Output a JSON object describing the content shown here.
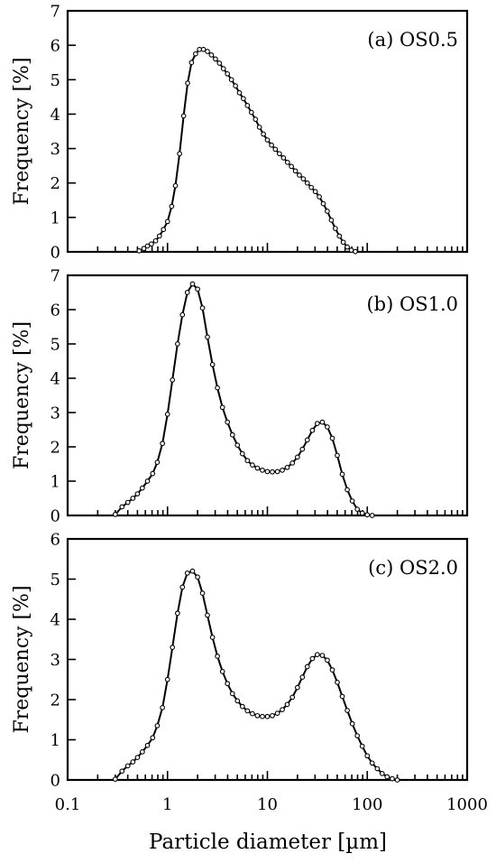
{
  "chart_data": {
    "type": "line",
    "xlabel": "Particle diameter [µm]",
    "xscale": "log",
    "xlim": [
      0.1,
      1000
    ],
    "x_tick_labels": [
      "0.1",
      "1",
      "10",
      "100",
      "1000"
    ],
    "x_tick_values": [
      0.1,
      1,
      10,
      100,
      1000
    ],
    "grid": false,
    "marker": "open-circle",
    "panels": [
      {
        "label": "(a) OS0.5",
        "ylabel": "Frequency [%]",
        "ylim": [
          0,
          7
        ],
        "y_ticks": [
          0,
          1,
          2,
          3,
          4,
          5,
          6,
          7
        ],
        "series": [
          {
            "x": [
              0.52,
              0.58,
              0.63,
              0.69,
              0.76,
              0.83,
              0.91,
              1.0,
              1.1,
              1.2,
              1.32,
              1.45,
              1.59,
              1.74,
              1.91,
              2.09,
              2.29,
              2.51,
              2.75,
              3.02,
              3.31,
              3.63,
              3.98,
              4.37,
              4.79,
              5.25,
              5.75,
              6.31,
              6.92,
              7.59,
              8.32,
              9.12,
              10.0,
              11.0,
              12.0,
              13.2,
              14.5,
              15.9,
              17.4,
              19.1,
              20.9,
              22.9,
              25.1,
              27.5,
              30.2,
              33.1,
              36.3,
              39.8,
              43.7,
              47.9,
              52.5,
              57.5,
              63.1,
              69.2,
              75.9
            ],
            "y": [
              0.03,
              0.1,
              0.17,
              0.23,
              0.32,
              0.46,
              0.65,
              0.88,
              1.32,
              1.92,
              2.85,
              3.95,
              4.9,
              5.5,
              5.75,
              5.88,
              5.88,
              5.82,
              5.72,
              5.6,
              5.48,
              5.32,
              5.17,
              5.0,
              4.82,
              4.62,
              4.45,
              4.25,
              4.05,
              3.85,
              3.62,
              3.42,
              3.25,
              3.1,
              2.98,
              2.85,
              2.73,
              2.6,
              2.48,
              2.35,
              2.23,
              2.12,
              2.0,
              1.87,
              1.75,
              1.6,
              1.4,
              1.18,
              0.92,
              0.68,
              0.46,
              0.28,
              0.14,
              0.05,
              0.01
            ]
          }
        ]
      },
      {
        "label": "(b) OS1.0",
        "ylabel": "Frequency [%]",
        "ylim": [
          0,
          7
        ],
        "y_ticks": [
          0,
          1,
          2,
          3,
          4,
          5,
          6,
          7
        ],
        "series": [
          {
            "x": [
              0.3,
              0.35,
              0.4,
              0.45,
              0.5,
              0.56,
              0.63,
              0.71,
              0.79,
              0.89,
              1.0,
              1.12,
              1.26,
              1.41,
              1.58,
              1.78,
              2.0,
              2.24,
              2.51,
              2.82,
              3.16,
              3.55,
              3.98,
              4.47,
              5.01,
              5.62,
              6.31,
              7.08,
              7.94,
              8.91,
              10.0,
              11.2,
              12.6,
              14.1,
              15.8,
              17.8,
              20.0,
              22.4,
              25.1,
              28.2,
              31.6,
              35.5,
              39.8,
              44.7,
              50.1,
              56.2,
              63.1,
              70.8,
              79.4,
              89.1,
              100,
              112
            ],
            "y": [
              0.03,
              0.25,
              0.38,
              0.5,
              0.63,
              0.8,
              1.0,
              1.22,
              1.55,
              2.1,
              2.95,
              3.95,
              5.0,
              5.85,
              6.5,
              6.75,
              6.6,
              6.05,
              5.2,
              4.4,
              3.72,
              3.15,
              2.72,
              2.35,
              2.05,
              1.8,
              1.6,
              1.47,
              1.38,
              1.32,
              1.28,
              1.27,
              1.28,
              1.32,
              1.4,
              1.53,
              1.7,
              1.93,
              2.2,
              2.48,
              2.68,
              2.72,
              2.58,
              2.25,
              1.75,
              1.2,
              0.75,
              0.42,
              0.18,
              0.07,
              0.02,
              0.0
            ]
          }
        ]
      },
      {
        "label": "(c) OS2.0",
        "ylabel": "Frequency [%]",
        "ylim": [
          0,
          6
        ],
        "y_ticks": [
          0,
          1,
          2,
          3,
          4,
          5,
          6
        ],
        "series": [
          {
            "x": [
              0.3,
              0.35,
              0.4,
              0.45,
              0.5,
              0.56,
              0.63,
              0.71,
              0.79,
              0.89,
              1.0,
              1.12,
              1.26,
              1.41,
              1.58,
              1.78,
              2.0,
              2.24,
              2.51,
              2.82,
              3.16,
              3.55,
              3.98,
              4.47,
              5.01,
              5.62,
              6.31,
              7.08,
              7.94,
              8.91,
              10.0,
              11.2,
              12.6,
              14.1,
              15.8,
              17.8,
              20.0,
              22.4,
              25.1,
              28.2,
              31.6,
              35.5,
              39.8,
              44.7,
              50.1,
              56.2,
              63.1,
              70.8,
              79.4,
              89.1,
              100,
              112,
              126,
              141,
              158,
              178,
              200
            ],
            "y": [
              0.02,
              0.22,
              0.35,
              0.45,
              0.56,
              0.7,
              0.86,
              1.05,
              1.35,
              1.8,
              2.5,
              3.3,
              4.15,
              4.8,
              5.15,
              5.2,
              5.05,
              4.65,
              4.1,
              3.55,
              3.08,
              2.7,
              2.4,
              2.15,
              1.97,
              1.83,
              1.72,
              1.65,
              1.6,
              1.58,
              1.58,
              1.6,
              1.66,
              1.75,
              1.88,
              2.06,
              2.3,
              2.56,
              2.82,
              3.02,
              3.12,
              3.1,
              2.98,
              2.74,
              2.43,
              2.08,
              1.73,
              1.4,
              1.1,
              0.84,
              0.6,
              0.42,
              0.28,
              0.16,
              0.08,
              0.03,
              0.0
            ]
          }
        ]
      }
    ]
  }
}
